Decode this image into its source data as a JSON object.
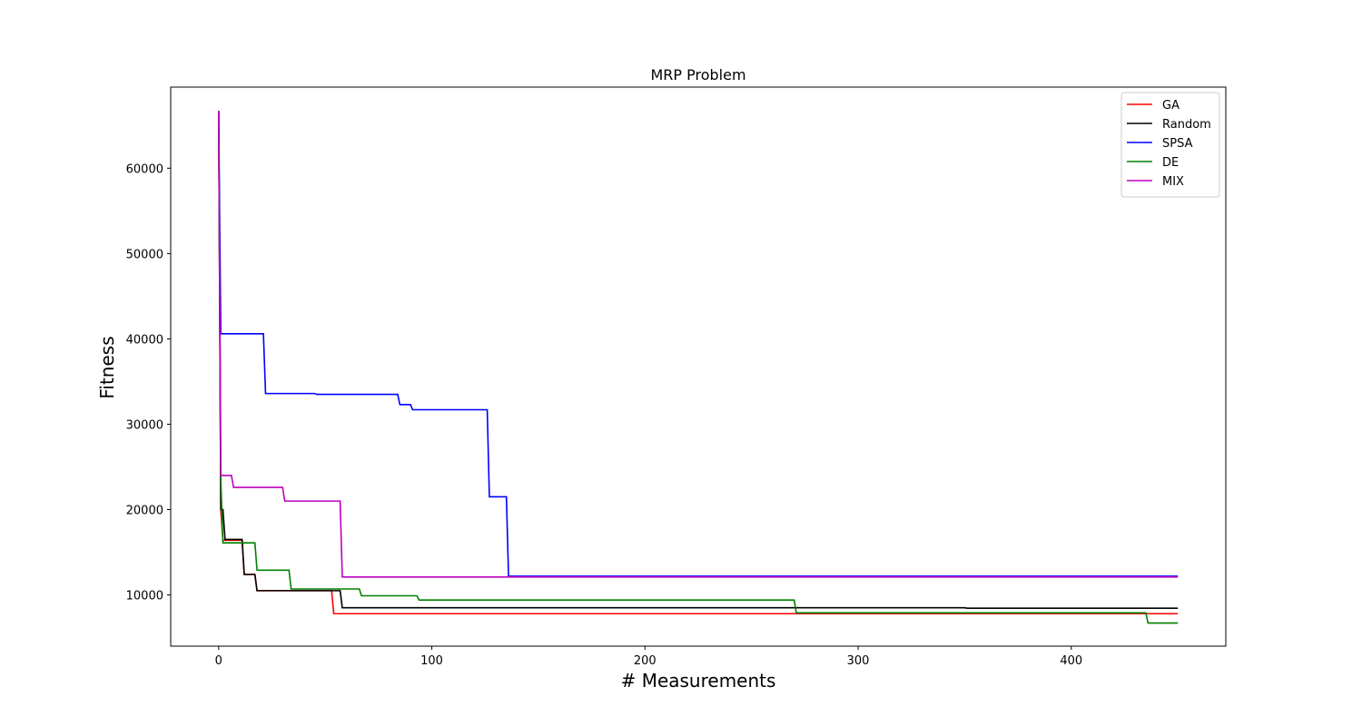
{
  "chart_data": {
    "type": "line",
    "title": "MRP Problem",
    "xlabel": "# Measurements",
    "ylabel": "Fitness",
    "xlim": [
      -22.5,
      472.5
    ],
    "ylim": [
      4000,
      69500
    ],
    "xticks": [
      0,
      100,
      200,
      300,
      400
    ],
    "yticks": [
      10000,
      20000,
      30000,
      40000,
      50000,
      60000
    ],
    "grid": false,
    "legend_position": "top-right",
    "series": [
      {
        "name": "GA",
        "color": "#ff0000",
        "points": [
          [
            0,
            66700
          ],
          [
            1,
            20000
          ],
          [
            2,
            16400
          ],
          [
            11,
            16400
          ],
          [
            12,
            12400
          ],
          [
            17,
            12400
          ],
          [
            18,
            10500
          ],
          [
            53,
            10500
          ],
          [
            54,
            7800
          ],
          [
            450,
            7800
          ]
        ]
      },
      {
        "name": "Random",
        "color": "#000000",
        "points": [
          [
            0,
            66700
          ],
          [
            1,
            20000
          ],
          [
            2,
            20000
          ],
          [
            3,
            16500
          ],
          [
            11,
            16500
          ],
          [
            12,
            12400
          ],
          [
            17,
            12400
          ],
          [
            18,
            10500
          ],
          [
            57,
            10500
          ],
          [
            58,
            8500
          ],
          [
            350,
            8500
          ],
          [
            351,
            8450
          ],
          [
            450,
            8450
          ]
        ]
      },
      {
        "name": "SPSA",
        "color": "#0000ff",
        "points": [
          [
            0,
            66700
          ],
          [
            1,
            40600
          ],
          [
            21,
            40600
          ],
          [
            22,
            33600
          ],
          [
            45,
            33600
          ],
          [
            46,
            33500
          ],
          [
            84,
            33500
          ],
          [
            85,
            32300
          ],
          [
            90,
            32300
          ],
          [
            91,
            31700
          ],
          [
            126,
            31700
          ],
          [
            127,
            21500
          ],
          [
            135,
            21500
          ],
          [
            136,
            12200
          ],
          [
            450,
            12200
          ]
        ]
      },
      {
        "name": "DE",
        "color": "#008000",
        "points": [
          [
            0,
            66700
          ],
          [
            1,
            23500
          ],
          [
            2,
            16100
          ],
          [
            17,
            16100
          ],
          [
            18,
            12900
          ],
          [
            33,
            12900
          ],
          [
            34,
            10700
          ],
          [
            66,
            10700
          ],
          [
            67,
            9900
          ],
          [
            93,
            9900
          ],
          [
            94,
            9400
          ],
          [
            270,
            9400
          ],
          [
            271,
            7900
          ],
          [
            435,
            7900
          ],
          [
            436,
            6700
          ],
          [
            450,
            6700
          ]
        ]
      },
      {
        "name": "MIX",
        "color": "#bf00bf",
        "points": [
          [
            0,
            66700
          ],
          [
            1,
            24000
          ],
          [
            6,
            24000
          ],
          [
            7,
            22600
          ],
          [
            30,
            22600
          ],
          [
            31,
            21000
          ],
          [
            57,
            21000
          ],
          [
            58,
            12100
          ],
          [
            450,
            12100
          ]
        ]
      }
    ]
  }
}
